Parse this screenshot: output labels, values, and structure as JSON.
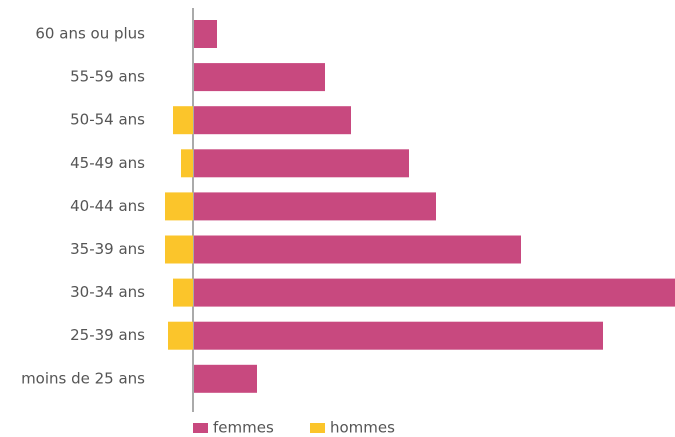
{
  "chart_data": {
    "type": "bar",
    "orientation": "horizontal",
    "categories": [
      "60 ans ou plus",
      "55-59 ans",
      "50-54 ans",
      "45-49 ans",
      "40-44 ans",
      "35-39 ans",
      "30-34 ans",
      "25-39 ans",
      "moins de 25 ans"
    ],
    "series": [
      {
        "name": "femmes",
        "color": "#c8497f",
        "values": [
          23,
          131,
          157,
          215,
          242,
          327,
          481,
          409,
          63
        ]
      },
      {
        "name": "hommes",
        "color": "#fbc52b",
        "values": [
          0,
          0,
          20,
          12,
          28,
          28,
          20,
          25,
          0
        ]
      }
    ],
    "legend": "bottom"
  }
}
